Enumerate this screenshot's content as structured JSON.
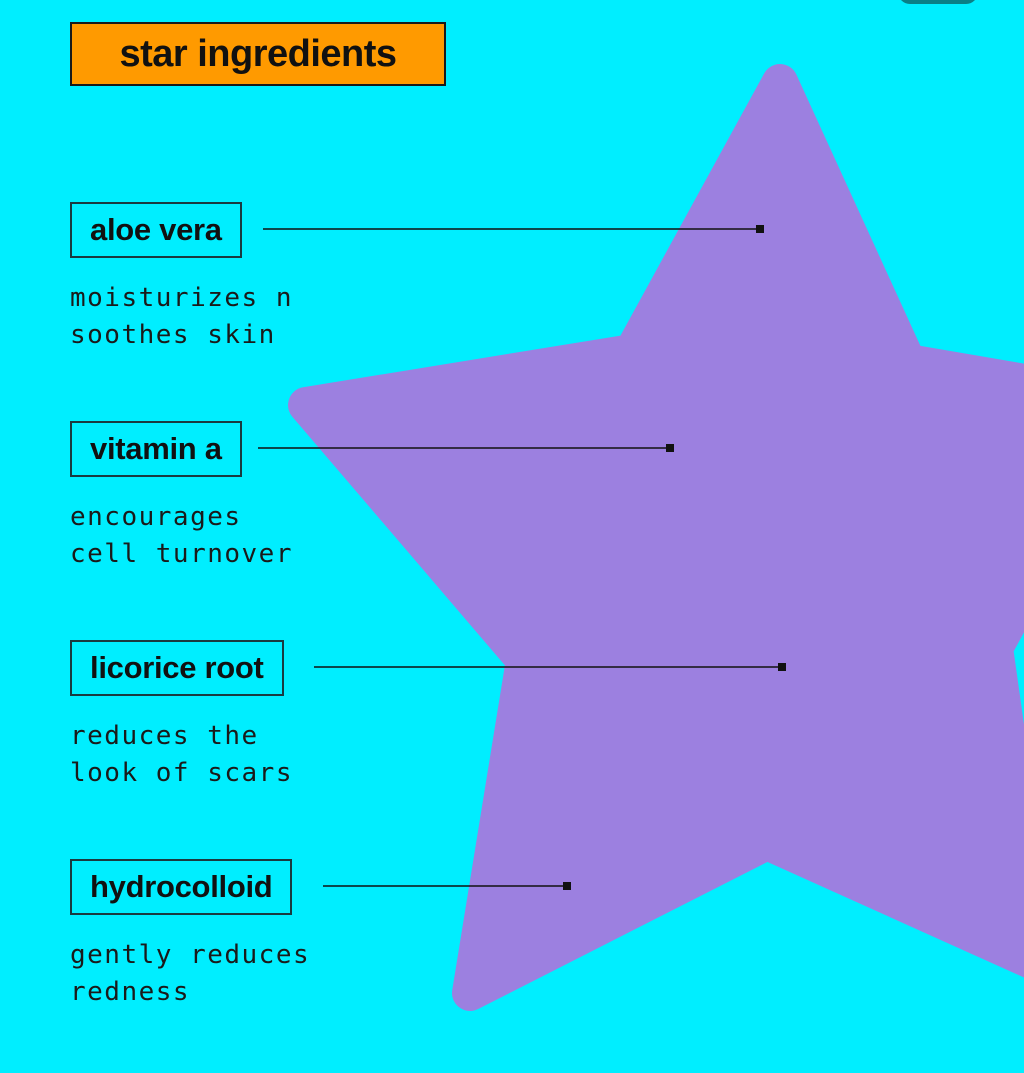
{
  "colors": {
    "background": "#00EEFF",
    "star": "#9C80E0",
    "title_box": "#FF9A00",
    "text": "#111111"
  },
  "title": "star ingredients",
  "ingredients": [
    {
      "name": "aloe vera",
      "description": "moisturizes n\nsoothes skin"
    },
    {
      "name": "vitamin a",
      "description": "encourages\ncell turnover"
    },
    {
      "name": "licorice root",
      "description": "reduces the\nlook of scars"
    },
    {
      "name": "hydrocolloid",
      "description": "gently reduces\nredness"
    }
  ]
}
